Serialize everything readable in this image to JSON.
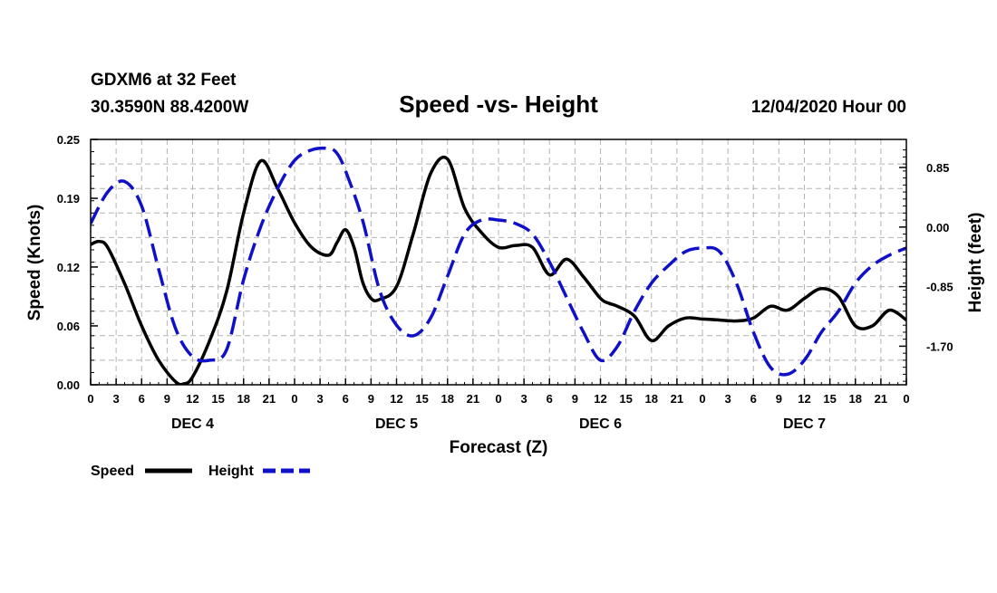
{
  "header": {
    "station": "GDXM6 at 32 Feet",
    "coords": "30.3590N 88.4200W",
    "title": "Speed -vs- Height",
    "date": "12/04/2020 Hour 00"
  },
  "colors": {
    "speed": "#000000",
    "height": "#1010c8",
    "grid": "#b4b4b4"
  },
  "chart_data": {
    "type": "line",
    "title": "Speed -vs- Height",
    "xlabel": "Forecast (Z)",
    "ylabel": "Speed (Knots)",
    "y2label": "Height (feet)",
    "xlim": [
      0,
      96
    ],
    "ylim": [
      0,
      0.25
    ],
    "y2lim": [
      -2.25,
      1.25
    ],
    "yticks": [
      0.0,
      0.06,
      0.12,
      0.19,
      0.25
    ],
    "yticklabels": [
      "0.00",
      "0.06",
      "0.12",
      "0.19",
      "0.25"
    ],
    "y2ticks": [
      0.85,
      0.0,
      -0.85,
      -1.7
    ],
    "y2ticklabels": [
      "0.85",
      "0.00",
      "-0.85",
      "-1.70"
    ],
    "xticks": [
      0,
      3,
      6,
      9,
      12,
      15,
      18,
      21,
      24,
      27,
      30,
      33,
      36,
      39,
      42,
      45,
      48,
      51,
      54,
      57,
      60,
      63,
      66,
      69,
      72,
      75,
      78,
      81,
      84,
      87,
      90,
      93,
      96
    ],
    "xticklabels": [
      "0",
      "3",
      "6",
      "9",
      "12",
      "15",
      "18",
      "21",
      "0",
      "3",
      "6",
      "9",
      "12",
      "15",
      "18",
      "21",
      "0",
      "3",
      "6",
      "9",
      "12",
      "15",
      "18",
      "21",
      "0",
      "3",
      "6",
      "9",
      "12",
      "15",
      "18",
      "21",
      "0"
    ],
    "day_labels": [
      {
        "label": "DEC 4",
        "x": 12
      },
      {
        "label": "DEC 5",
        "x": 36
      },
      {
        "label": "DEC 6",
        "x": 60
      },
      {
        "label": "DEC 7",
        "x": 84
      }
    ],
    "series": [
      {
        "name": "Speed",
        "axis": "left",
        "style": "solid",
        "x": [
          0,
          1,
          2,
          4,
          6,
          8,
          10,
          11,
          12,
          14,
          16,
          18,
          20,
          22,
          24,
          26,
          28,
          29,
          30,
          31,
          32,
          33,
          34,
          36,
          38,
          40,
          42,
          44,
          46,
          48,
          50,
          52,
          54,
          56,
          58,
          60,
          61,
          62,
          64,
          66,
          68,
          70,
          72,
          74,
          76,
          78,
          80,
          82,
          84,
          86,
          88,
          90,
          92,
          94,
          96
        ],
        "values": [
          0.143,
          0.146,
          0.14,
          0.103,
          0.06,
          0.025,
          0.003,
          0.001,
          0.008,
          0.045,
          0.095,
          0.175,
          0.228,
          0.2,
          0.165,
          0.14,
          0.132,
          0.145,
          0.158,
          0.14,
          0.105,
          0.088,
          0.087,
          0.1,
          0.155,
          0.215,
          0.23,
          0.18,
          0.155,
          0.14,
          0.142,
          0.14,
          0.112,
          0.128,
          0.11,
          0.088,
          0.083,
          0.08,
          0.07,
          0.045,
          0.06,
          0.068,
          0.067,
          0.066,
          0.065,
          0.068,
          0.08,
          0.076,
          0.088,
          0.098,
          0.09,
          0.06,
          0.06,
          0.076,
          0.066
        ]
      },
      {
        "name": "Height",
        "axis": "right",
        "style": "dashed",
        "x": [
          0,
          2,
          4,
          6,
          8,
          10,
          12,
          14,
          16,
          18,
          20,
          22,
          24,
          26,
          28,
          29,
          30,
          32,
          34,
          36,
          38,
          40,
          42,
          44,
          46,
          48,
          50,
          52,
          54,
          56,
          58,
          60,
          62,
          64,
          66,
          68,
          70,
          72,
          74,
          76,
          78,
          80,
          82,
          84,
          86,
          88,
          90,
          92,
          94,
          96
        ],
        "values": [
          0.05,
          0.5,
          0.65,
          0.3,
          -0.6,
          -1.45,
          -1.85,
          -1.9,
          -1.75,
          -0.75,
          0.0,
          0.55,
          0.95,
          1.1,
          1.12,
          1.05,
          0.8,
          0.1,
          -0.9,
          -1.4,
          -1.55,
          -1.3,
          -0.7,
          -0.1,
          0.1,
          0.1,
          0.05,
          -0.1,
          -0.5,
          -1.0,
          -1.5,
          -1.9,
          -1.7,
          -1.2,
          -0.8,
          -0.55,
          -0.35,
          -0.3,
          -0.35,
          -0.8,
          -1.5,
          -2.0,
          -2.1,
          -1.9,
          -1.5,
          -1.2,
          -0.8,
          -0.55,
          -0.4,
          -0.3
        ]
      }
    ],
    "legend": [
      {
        "label": "Speed",
        "style": "solid"
      },
      {
        "label": "Height",
        "style": "dashed"
      }
    ]
  }
}
